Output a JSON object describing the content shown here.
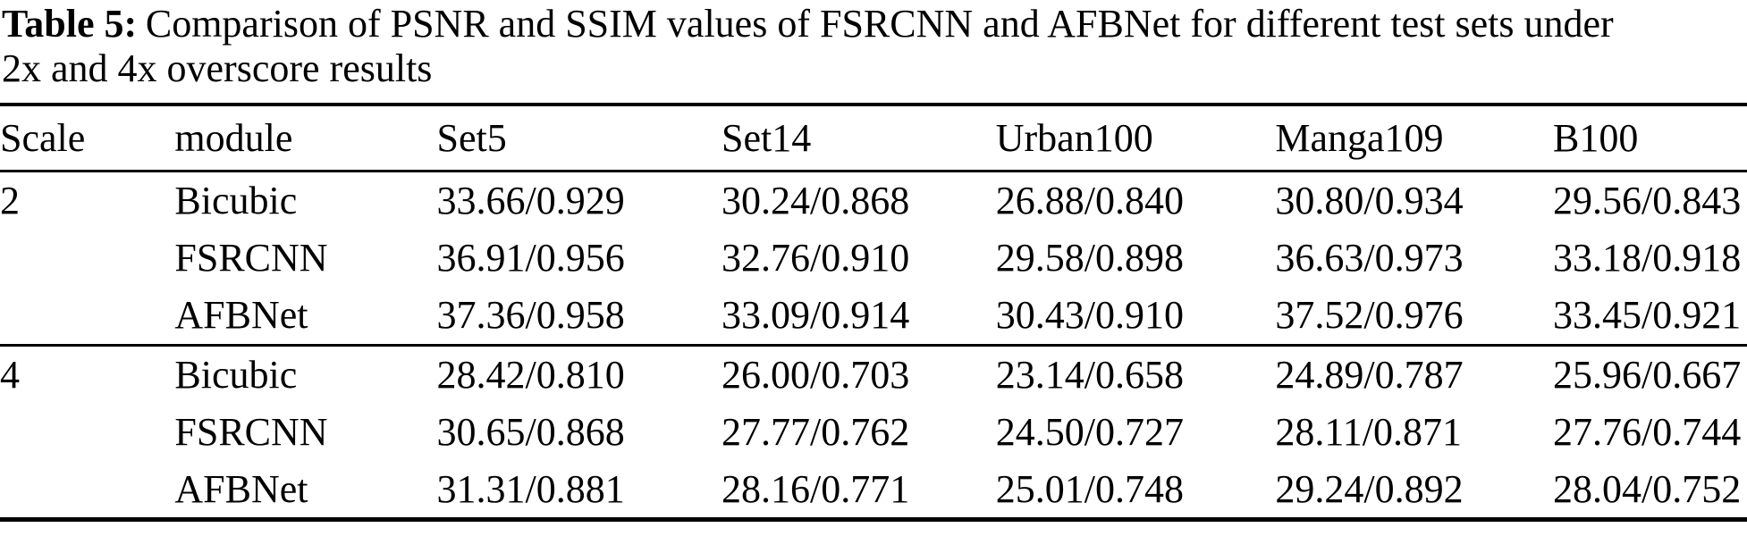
{
  "title": {
    "label": "Table 5:",
    "line1_text": "Comparison of PSNR and SSIM values of FSRCNN and AFBNet for different test sets under",
    "line2_text": "2x and 4x overscore results"
  },
  "table": {
    "columns": [
      "Scale",
      "module",
      "Set5",
      "Set14",
      "Urban100",
      "Manga109",
      "B100"
    ],
    "groups": [
      {
        "scale": "2",
        "rows": [
          {
            "module": "Bicubic",
            "values": [
              "33.66/0.929",
              "30.24/0.868",
              "26.88/0.840",
              "30.80/0.934",
              "29.56/0.843"
            ]
          },
          {
            "module": "FSRCNN",
            "values": [
              "36.91/0.956",
              "32.76/0.910",
              "29.58/0.898",
              "36.63/0.973",
              "33.18/0.918"
            ]
          },
          {
            "module": "AFBNet",
            "values": [
              "37.36/0.958",
              "33.09/0.914",
              "30.43/0.910",
              "37.52/0.976",
              "33.45/0.921"
            ]
          }
        ]
      },
      {
        "scale": "4",
        "rows": [
          {
            "module": "Bicubic",
            "values": [
              "28.42/0.810",
              "26.00/0.703",
              "23.14/0.658",
              "24.89/0.787",
              "25.96/0.667"
            ]
          },
          {
            "module": "FSRCNN",
            "values": [
              "30.65/0.868",
              "27.77/0.762",
              "24.50/0.727",
              "28.11/0.871",
              "27.76/0.744"
            ]
          },
          {
            "module": "AFBNet",
            "values": [
              "31.31/0.881",
              "28.16/0.771",
              "25.01/0.748",
              "29.24/0.892",
              "28.04/0.752"
            ]
          }
        ]
      }
    ]
  },
  "colors": {
    "text": "#000000",
    "background": "#ffffff",
    "rule": "#000000"
  }
}
